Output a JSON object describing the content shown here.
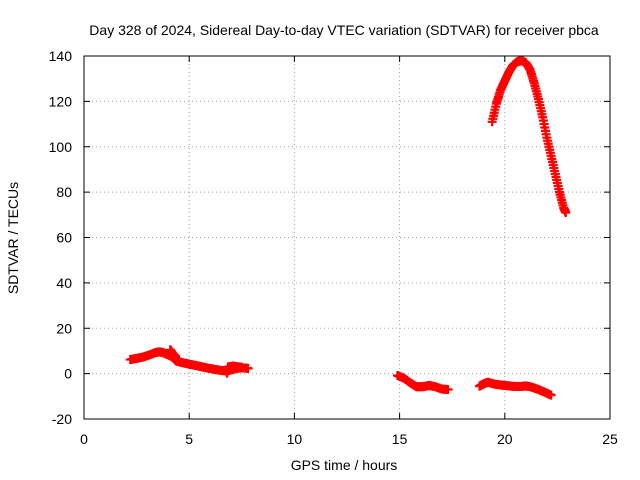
{
  "chart_data": {
    "type": "scatter",
    "title": "Day 328 of 2024, Sidereal Day-to-day VTEC variation (SDTVAR) for receiver pbca",
    "xlabel": "GPS time / hours",
    "ylabel": "SDTVAR / TECUs",
    "xlim": [
      0,
      25
    ],
    "ylim": [
      -20,
      140
    ],
    "xticks": [
      0,
      5,
      10,
      15,
      20,
      25
    ],
    "yticks": [
      -20,
      0,
      20,
      40,
      60,
      80,
      100,
      120,
      140
    ],
    "grid": true,
    "series": [
      {
        "name": "SDTVAR",
        "color": "#ff0000",
        "marker": "plus",
        "segments": [
          [
            [
              2.2,
              6.2
            ],
            [
              2.5,
              6.7
            ],
            [
              2.8,
              7.3
            ],
            [
              3.1,
              8.2
            ],
            [
              3.4,
              9.3
            ],
            [
              3.6,
              9.6
            ],
            [
              3.8,
              9.1
            ],
            [
              4.0,
              8.3
            ],
            [
              4.2,
              7.4
            ],
            [
              4.3,
              6.5
            ],
            [
              4.4,
              5.5
            ],
            [
              4.7,
              4.8
            ],
            [
              5.0,
              4.2
            ],
            [
              5.3,
              3.6
            ],
            [
              5.6,
              3.0
            ],
            [
              5.9,
              2.4
            ],
            [
              6.2,
              1.9
            ],
            [
              6.5,
              1.4
            ],
            [
              6.8,
              1.2
            ],
            [
              7.0,
              1.7
            ],
            [
              7.2,
              2.2
            ],
            [
              7.4,
              2.5
            ],
            [
              7.6,
              2.5
            ],
            [
              7.8,
              2.3
            ]
          ],
          [
            [
              4.1,
              10.5
            ],
            [
              4.2,
              9.0
            ],
            [
              4.35,
              7.5
            ]
          ],
          [
            [
              6.8,
              0.2
            ],
            [
              6.85,
              3.0
            ],
            [
              7.1,
              3.3
            ],
            [
              7.3,
              3.0
            ],
            [
              7.5,
              2.8
            ]
          ],
          [
            [
              14.9,
              -0.8
            ],
            [
              15.2,
              -2.0
            ],
            [
              15.5,
              -4.0
            ],
            [
              15.8,
              -5.8
            ],
            [
              16.1,
              -5.8
            ],
            [
              16.4,
              -5.2
            ],
            [
              16.7,
              -5.8
            ],
            [
              17.0,
              -6.8
            ],
            [
              17.3,
              -7.0
            ]
          ],
          [
            [
              18.8,
              -5.5
            ],
            [
              19.0,
              -4.5
            ],
            [
              19.2,
              -3.8
            ],
            [
              19.5,
              -4.6
            ],
            [
              19.8,
              -5.0
            ],
            [
              20.1,
              -5.3
            ],
            [
              20.4,
              -5.6
            ],
            [
              20.7,
              -5.7
            ],
            [
              21.0,
              -5.4
            ],
            [
              21.3,
              -6.0
            ],
            [
              21.6,
              -7.0
            ],
            [
              21.9,
              -8.2
            ],
            [
              22.2,
              -9.5
            ]
          ],
          [
            [
              19.4,
              111
            ],
            [
              19.6,
              119
            ],
            [
              19.8,
              125
            ],
            [
              20.0,
              129
            ],
            [
              20.2,
              133
            ],
            [
              20.4,
              136
            ],
            [
              20.6,
              137.5
            ],
            [
              20.8,
              138
            ],
            [
              21.0,
              137
            ],
            [
              21.2,
              134
            ],
            [
              21.4,
              128
            ],
            [
              21.6,
              121
            ],
            [
              21.8,
              113
            ],
            [
              22.0,
              104
            ],
            [
              22.2,
              96
            ],
            [
              22.4,
              88
            ],
            [
              22.6,
              80
            ],
            [
              22.8,
              73
            ],
            [
              22.9,
              71
            ]
          ]
        ]
      }
    ]
  }
}
